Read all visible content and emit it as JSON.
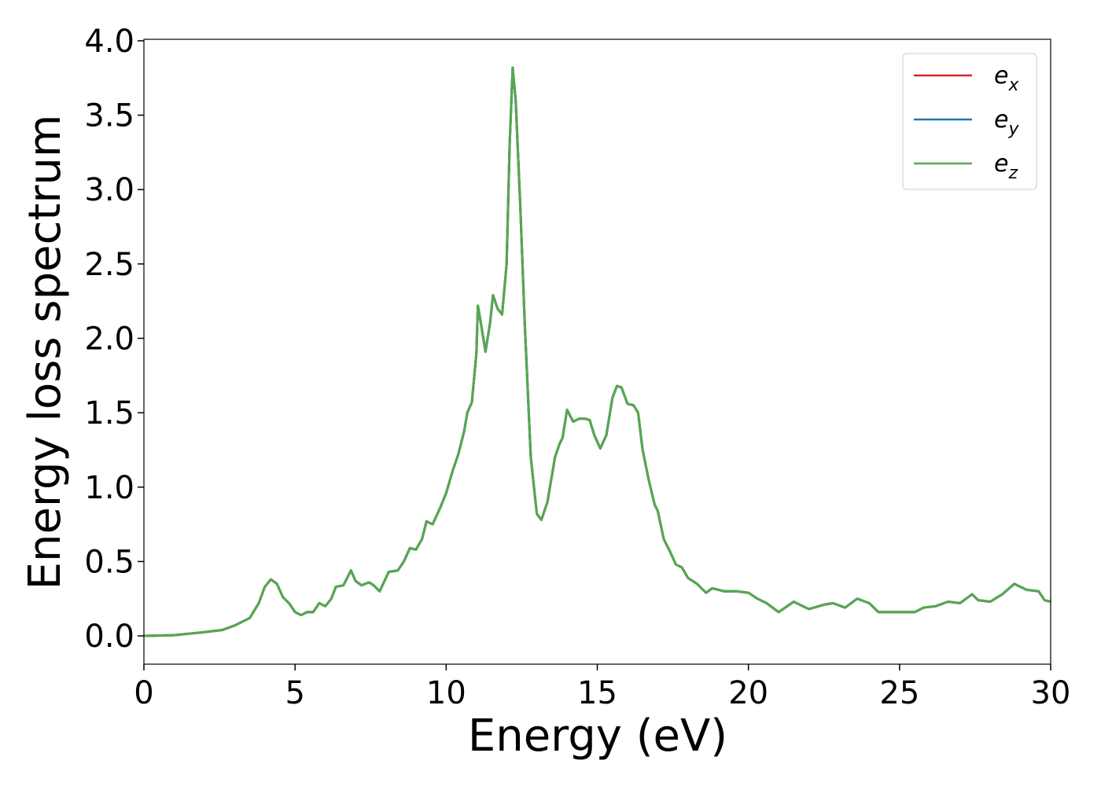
{
  "chart_data": {
    "type": "line",
    "xlabel": "Energy (eV)",
    "ylabel": "Energy loss spectrum",
    "x": [
      0,
      1,
      2,
      2.6,
      3,
      3.5,
      3.8,
      4.0,
      4.2,
      4.4,
      4.6,
      4.8,
      5.0,
      5.2,
      5.4,
      5.6,
      5.8,
      6.0,
      6.2,
      6.35,
      6.6,
      6.85,
      7.0,
      7.2,
      7.45,
      7.6,
      7.8,
      8.1,
      8.4,
      8.6,
      8.8,
      9.0,
      9.2,
      9.35,
      9.55,
      9.8,
      10.0,
      10.2,
      10.4,
      10.6,
      10.7,
      10.85,
      11.0,
      11.05,
      11.15,
      11.3,
      11.45,
      11.55,
      11.7,
      11.85,
      12.0,
      12.1,
      12.2,
      12.3,
      12.45,
      12.6,
      12.8,
      13.0,
      13.15,
      13.35,
      13.6,
      13.75,
      13.85,
      14.0,
      14.2,
      14.4,
      14.6,
      14.75,
      14.9,
      15.1,
      15.3,
      15.5,
      15.65,
      15.8,
      16.0,
      16.2,
      16.35,
      16.5,
      16.7,
      16.9,
      17.0,
      17.2,
      17.4,
      17.6,
      17.8,
      18.0,
      18.3,
      18.6,
      18.8,
      19.2,
      19.6,
      20.0,
      20.3,
      20.6,
      21.0,
      21.5,
      22.0,
      22.5,
      22.8,
      23.2,
      23.6,
      24.0,
      24.3,
      25.0,
      25.5,
      25.8,
      26.2,
      26.6,
      27.0,
      27.4,
      27.6,
      28.0,
      28.4,
      28.8,
      29.2,
      29.6,
      29.8,
      30
    ],
    "series": [
      {
        "name": "e",
        "subscript": "x",
        "color": "#d62728",
        "values": [
          0,
          0.005,
          0.025,
          0.04,
          0.07,
          0.12,
          0.22,
          0.33,
          0.38,
          0.35,
          0.26,
          0.22,
          0.16,
          0.14,
          0.16,
          0.16,
          0.22,
          0.2,
          0.25,
          0.33,
          0.34,
          0.44,
          0.37,
          0.34,
          0.36,
          0.34,
          0.3,
          0.43,
          0.44,
          0.5,
          0.59,
          0.58,
          0.65,
          0.77,
          0.75,
          0.86,
          0.96,
          1.1,
          1.22,
          1.38,
          1.5,
          1.57,
          1.9,
          2.22,
          2.1,
          1.91,
          2.1,
          2.29,
          2.2,
          2.16,
          2.5,
          3.3,
          3.82,
          3.6,
          2.9,
          2.1,
          1.2,
          0.82,
          0.78,
          0.9,
          1.2,
          1.29,
          1.33,
          1.52,
          1.44,
          1.46,
          1.46,
          1.45,
          1.35,
          1.26,
          1.35,
          1.6,
          1.68,
          1.67,
          1.56,
          1.55,
          1.5,
          1.25,
          1.05,
          0.88,
          0.84,
          0.65,
          0.57,
          0.48,
          0.46,
          0.39,
          0.35,
          0.29,
          0.32,
          0.3,
          0.3,
          0.29,
          0.25,
          0.22,
          0.16,
          0.23,
          0.18,
          0.21,
          0.22,
          0.19,
          0.25,
          0.22,
          0.16,
          0.16,
          0.16,
          0.19,
          0.2,
          0.23,
          0.22,
          0.28,
          0.24,
          0.23,
          0.28,
          0.35,
          0.31,
          0.3,
          0.24,
          0.23
        ]
      },
      {
        "name": "e",
        "subscript": "y",
        "color": "#1f77b4",
        "values": [
          0,
          0.005,
          0.025,
          0.04,
          0.07,
          0.12,
          0.22,
          0.33,
          0.38,
          0.35,
          0.26,
          0.22,
          0.16,
          0.14,
          0.16,
          0.16,
          0.22,
          0.2,
          0.25,
          0.33,
          0.34,
          0.44,
          0.37,
          0.34,
          0.36,
          0.34,
          0.3,
          0.43,
          0.44,
          0.5,
          0.59,
          0.58,
          0.65,
          0.77,
          0.75,
          0.86,
          0.96,
          1.1,
          1.22,
          1.38,
          1.5,
          1.57,
          1.9,
          2.22,
          2.1,
          1.91,
          2.1,
          2.29,
          2.2,
          2.16,
          2.5,
          3.3,
          3.82,
          3.6,
          2.9,
          2.1,
          1.2,
          0.82,
          0.78,
          0.9,
          1.2,
          1.29,
          1.33,
          1.52,
          1.44,
          1.46,
          1.46,
          1.45,
          1.35,
          1.26,
          1.35,
          1.6,
          1.68,
          1.67,
          1.56,
          1.55,
          1.5,
          1.25,
          1.05,
          0.88,
          0.84,
          0.65,
          0.57,
          0.48,
          0.46,
          0.39,
          0.35,
          0.29,
          0.32,
          0.3,
          0.3,
          0.29,
          0.25,
          0.22,
          0.16,
          0.23,
          0.18,
          0.21,
          0.22,
          0.19,
          0.25,
          0.22,
          0.16,
          0.16,
          0.16,
          0.19,
          0.2,
          0.23,
          0.22,
          0.28,
          0.24,
          0.23,
          0.28,
          0.35,
          0.31,
          0.3,
          0.24,
          0.23
        ]
      },
      {
        "name": "e",
        "subscript": "z",
        "color": "#55a84f",
        "values": [
          0,
          0.005,
          0.025,
          0.04,
          0.07,
          0.12,
          0.22,
          0.33,
          0.38,
          0.35,
          0.26,
          0.22,
          0.16,
          0.14,
          0.16,
          0.16,
          0.22,
          0.2,
          0.25,
          0.33,
          0.34,
          0.44,
          0.37,
          0.34,
          0.36,
          0.34,
          0.3,
          0.43,
          0.44,
          0.5,
          0.59,
          0.58,
          0.65,
          0.77,
          0.75,
          0.86,
          0.96,
          1.1,
          1.22,
          1.38,
          1.5,
          1.57,
          1.9,
          2.22,
          2.1,
          1.91,
          2.1,
          2.29,
          2.2,
          2.16,
          2.5,
          3.3,
          3.82,
          3.6,
          2.9,
          2.1,
          1.2,
          0.82,
          0.78,
          0.9,
          1.2,
          1.29,
          1.33,
          1.52,
          1.44,
          1.46,
          1.46,
          1.45,
          1.35,
          1.26,
          1.35,
          1.6,
          1.68,
          1.67,
          1.56,
          1.55,
          1.5,
          1.25,
          1.05,
          0.88,
          0.84,
          0.65,
          0.57,
          0.48,
          0.46,
          0.39,
          0.35,
          0.29,
          0.32,
          0.3,
          0.3,
          0.29,
          0.25,
          0.22,
          0.16,
          0.23,
          0.18,
          0.21,
          0.22,
          0.19,
          0.25,
          0.22,
          0.16,
          0.16,
          0.16,
          0.19,
          0.2,
          0.23,
          0.22,
          0.28,
          0.24,
          0.23,
          0.28,
          0.35,
          0.31,
          0.3,
          0.24,
          0.23
        ]
      }
    ],
    "xlim": [
      0,
      30
    ],
    "xticks": [
      0,
      5,
      10,
      15,
      20,
      25,
      30
    ],
    "ylim": [
      -0.19,
      4.01
    ],
    "yticks": [
      {
        "value": 0,
        "label": "0.0"
      },
      0.5,
      {
        "value": 1,
        "label": "1.0"
      },
      1.5,
      {
        "value": 2,
        "label": "2.0"
      },
      2.5,
      {
        "value": 3,
        "label": "3.0"
      },
      3.5,
      {
        "value": 4,
        "label": "4.0"
      }
    ],
    "legend": "upper right",
    "grid": false
  }
}
